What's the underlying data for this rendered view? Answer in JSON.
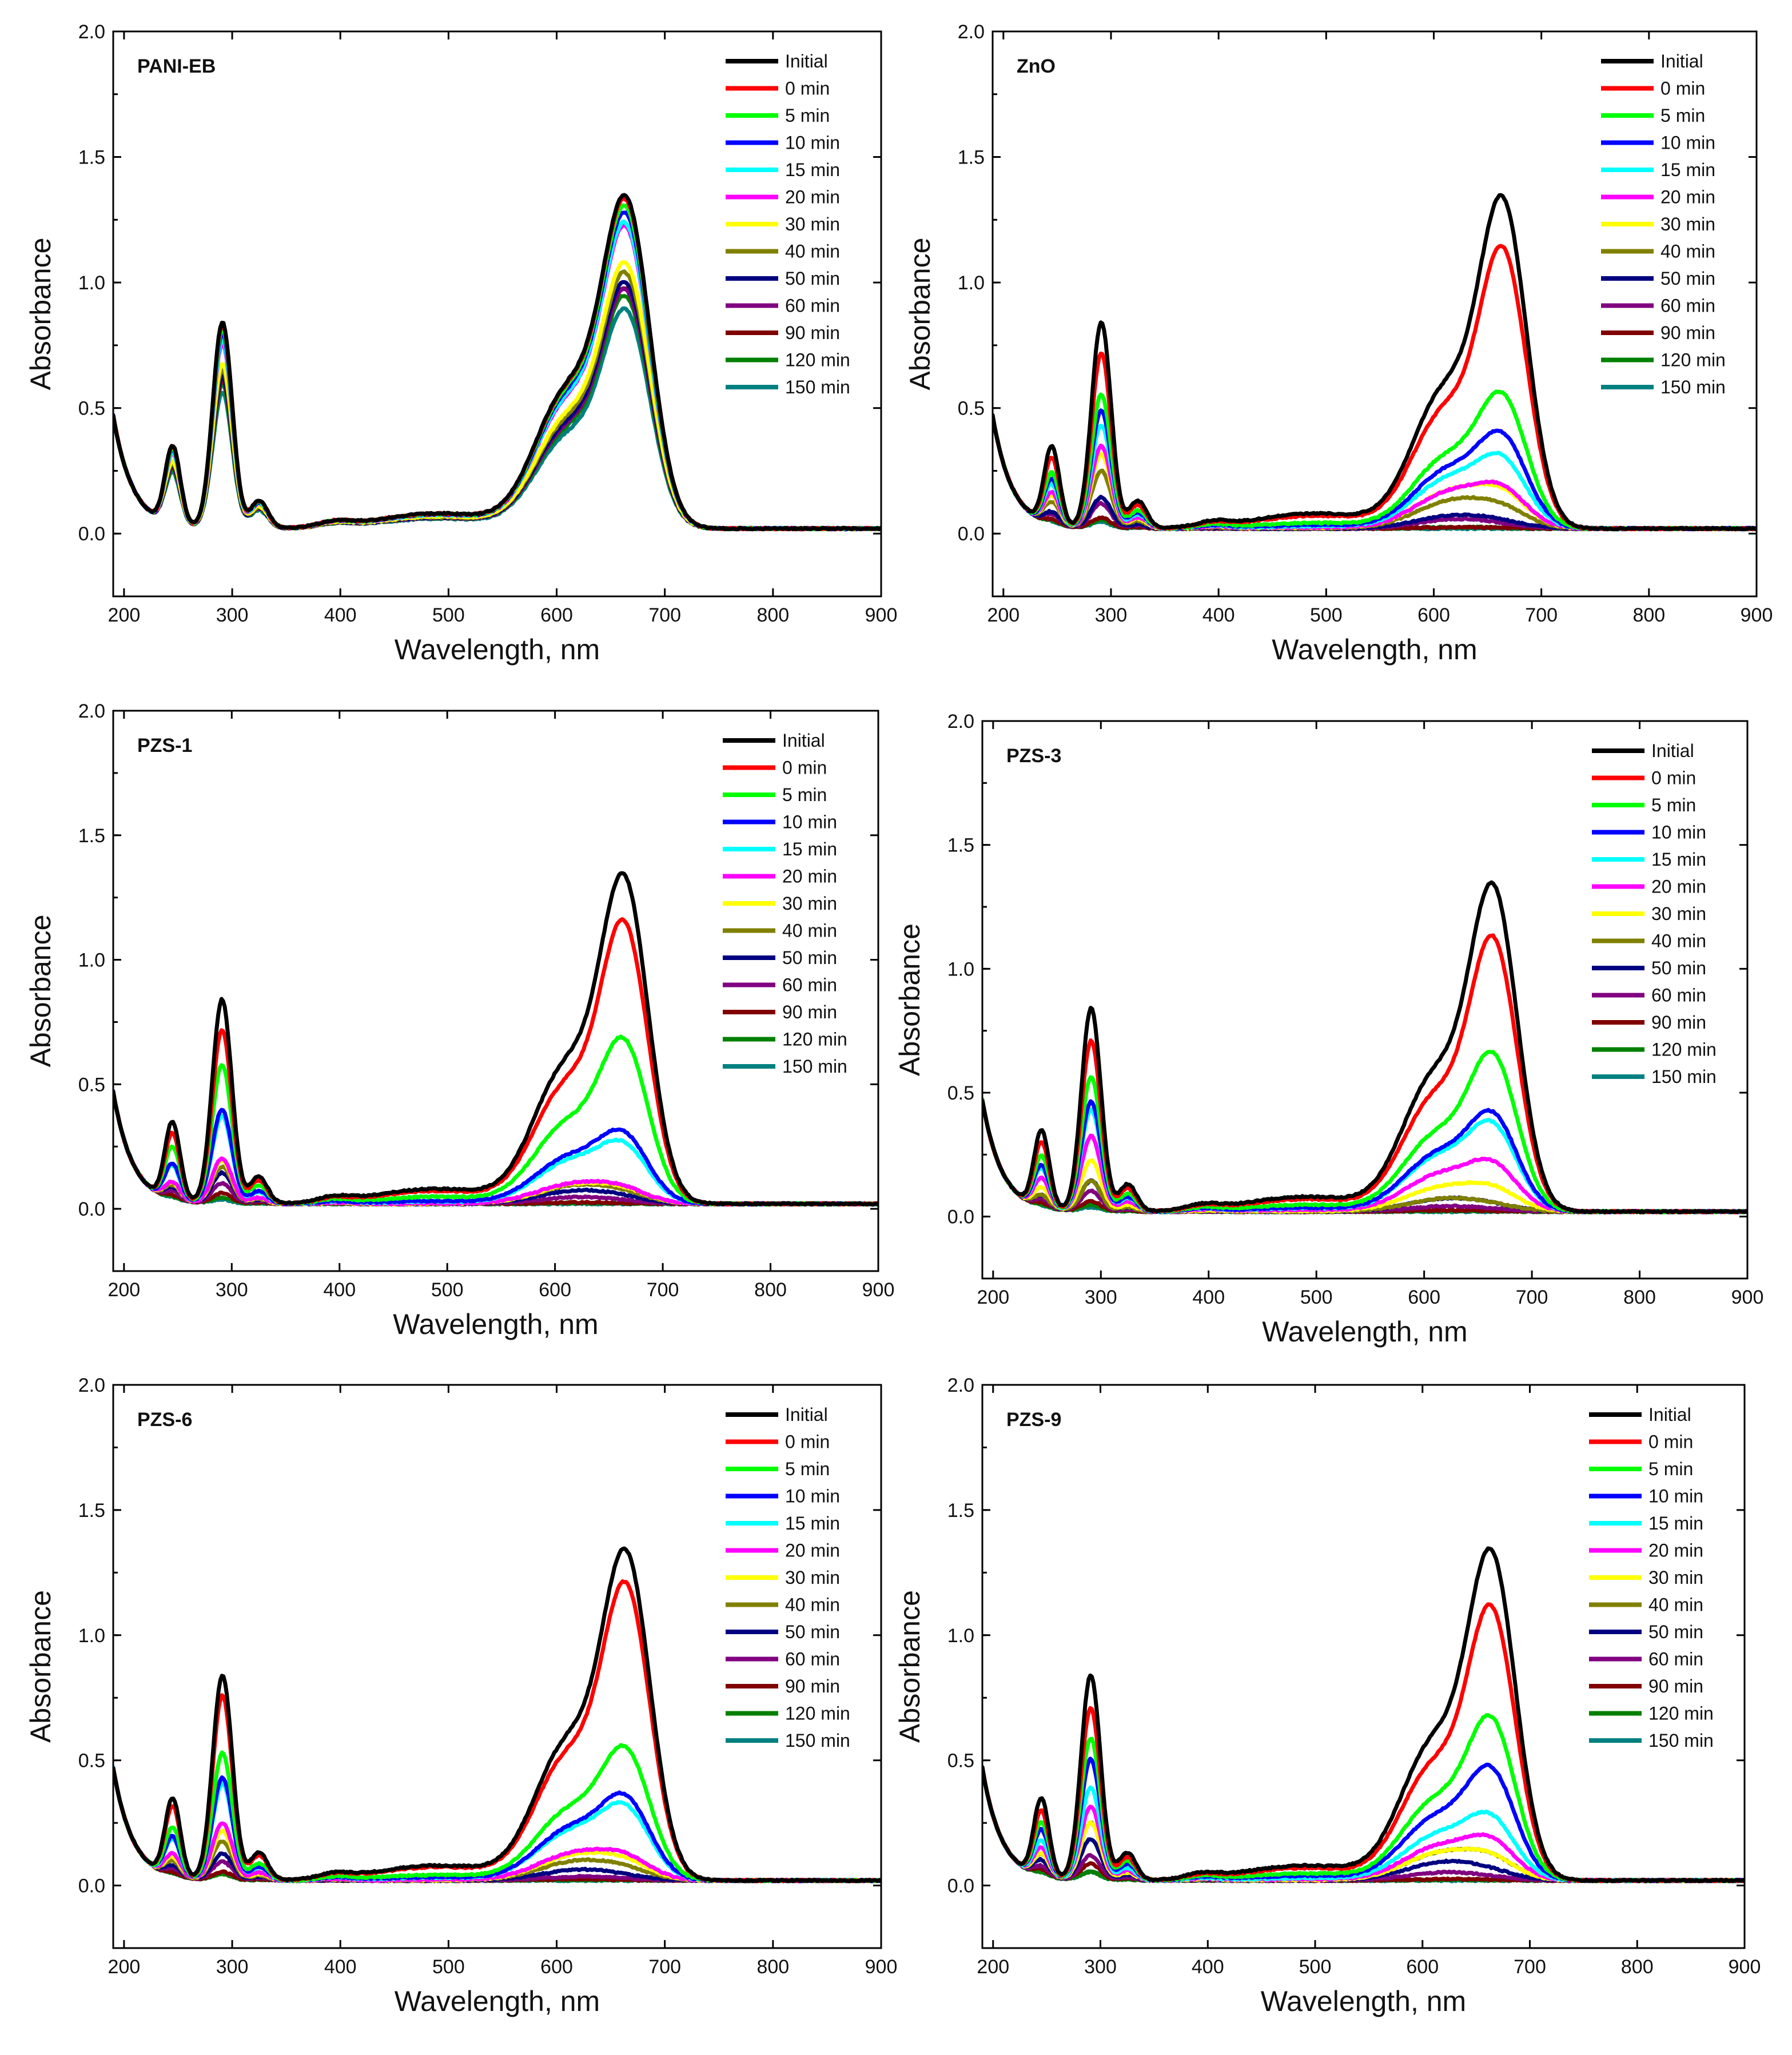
{
  "chart_data": [
    {
      "type": "line",
      "title": "PANI-EB",
      "xlabel": "Wavelength, nm",
      "ylabel": "Absorbance",
      "xlim": [
        190,
        900
      ],
      "ylim": [
        -0.25,
        2.0
      ],
      "xticks": [
        "200",
        "300",
        "400",
        "500",
        "600",
        "700",
        "800",
        "900"
      ],
      "yticks": [
        "0.0",
        "0.5",
        "1.0",
        "1.5",
        "2.0"
      ],
      "legend_position": "top-right",
      "series": [
        {
          "name": "Initial",
          "color": "#000000",
          "a": 1.0,
          "s1": 1.0,
          "s2": 1.0,
          "p": 0
        },
        {
          "name": "0 min",
          "color": "#ff0000",
          "a": 0.99,
          "s1": 0.99,
          "s2": 0.99,
          "p": 0
        },
        {
          "name": "5 min",
          "color": "#00ff00",
          "a": 0.97,
          "s1": 0.97,
          "s2": 0.97,
          "p": 0
        },
        {
          "name": "10 min",
          "color": "#0000ff",
          "a": 0.95,
          "s1": 0.95,
          "s2": 0.95,
          "p": 0
        },
        {
          "name": "15 min",
          "color": "#00ffff",
          "a": 0.92,
          "s1": 0.92,
          "s2": 0.92,
          "p": 0
        },
        {
          "name": "20 min",
          "color": "#ff00ff",
          "a": 0.9,
          "s1": 0.9,
          "s2": 0.91,
          "p": 0
        },
        {
          "name": "30 min",
          "color": "#ffff00",
          "a": 0.8,
          "s1": 0.8,
          "s2": 0.8,
          "p": 0
        },
        {
          "name": "40 min",
          "color": "#808000",
          "a": 0.77,
          "s1": 0.76,
          "s2": 0.77,
          "p": 0
        },
        {
          "name": "50 min",
          "color": "#000080",
          "a": 0.74,
          "s1": 0.72,
          "s2": 0.74,
          "p": 0
        },
        {
          "name": "60 min",
          "color": "#800080",
          "a": 0.73,
          "s1": 0.71,
          "s2": 0.72,
          "p": 0
        },
        {
          "name": "90 min",
          "color": "#800000",
          "a": 0.72,
          "s1": 0.7,
          "s2": 0.72,
          "p": 0
        },
        {
          "name": "120 min",
          "color": "#008000",
          "a": 0.7,
          "s1": 0.67,
          "s2": 0.7,
          "p": 0
        },
        {
          "name": "150 min",
          "color": "#008080",
          "a": 0.66,
          "s1": 0.64,
          "s2": 0.66,
          "p": 0
        }
      ]
    },
    {
      "type": "line",
      "title": "ZnO",
      "xlabel": "Wavelength, nm",
      "ylabel": "Absorbance",
      "xlim": [
        190,
        900
      ],
      "ylim": [
        -0.25,
        2.0
      ],
      "xticks": [
        "200",
        "300",
        "400",
        "500",
        "600",
        "700",
        "800",
        "900"
      ],
      "yticks": [
        "0.0",
        "0.5",
        "1.0",
        "1.5",
        "2.0"
      ],
      "legend_position": "top-right",
      "series": [
        {
          "name": "Initial",
          "color": "#000000",
          "a": 1.0,
          "s1": 1.0,
          "s2": 1.0,
          "p": 0
        },
        {
          "name": "0 min",
          "color": "#ff0000",
          "a": 0.85,
          "s1": 0.82,
          "s2": 0.85,
          "p": 0
        },
        {
          "name": "5 min",
          "color": "#00ff00",
          "a": 0.65,
          "s1": 0.55,
          "s2": 0.52,
          "p": 0.3
        },
        {
          "name": "10 min",
          "color": "#0000ff",
          "a": 0.57,
          "s1": 0.45,
          "s2": 0.43,
          "p": 0.45
        },
        {
          "name": "15 min",
          "color": "#00ffff",
          "a": 0.5,
          "s1": 0.4,
          "s2": 0.35,
          "p": 0.55
        },
        {
          "name": "20 min",
          "color": "#ff00ff",
          "a": 0.4,
          "s1": 0.3,
          "s2": 0.23,
          "p": 0.7
        },
        {
          "name": "30 min",
          "color": "#ffff00",
          "a": 0.36,
          "s1": 0.3,
          "s2": 0.23,
          "p": 0.75
        },
        {
          "name": "40 min",
          "color": "#808000",
          "a": 0.28,
          "s1": 0.22,
          "s2": 0.17,
          "p": 0.85
        },
        {
          "name": "50 min",
          "color": "#000080",
          "a": 0.15,
          "s1": 0.1,
          "s2": 0.07,
          "p": 0.95
        },
        {
          "name": "60 min",
          "color": "#800080",
          "a": 0.12,
          "s1": 0.07,
          "s2": 0.05,
          "p": 1.0
        },
        {
          "name": "90 min",
          "color": "#800000",
          "a": 0.05,
          "s1": 0.01,
          "s2": 0.005,
          "p": 1.0
        },
        {
          "name": "120 min",
          "color": "#008000",
          "a": 0.04,
          "s1": 0.01,
          "s2": 0.005,
          "p": 1.0
        },
        {
          "name": "150 min",
          "color": "#008080",
          "a": 0.03,
          "s1": 0.0,
          "s2": 0.0,
          "p": 1.0
        }
      ]
    },
    {
      "type": "line",
      "title": "PZS-1",
      "xlabel": "Wavelength, nm",
      "ylabel": "Absorbance",
      "xlim": [
        190,
        900
      ],
      "ylim": [
        -0.25,
        2.0
      ],
      "xticks": [
        "200",
        "300",
        "400",
        "500",
        "600",
        "700",
        "800",
        "900"
      ],
      "yticks": [
        "0.0",
        "0.5",
        "1.0",
        "1.5",
        "2.0"
      ],
      "legend_position": "top-right",
      "series": [
        {
          "name": "Initial",
          "color": "#000000",
          "a": 1.0,
          "s1": 1.0,
          "s2": 1.0,
          "p": 0
        },
        {
          "name": "0 min",
          "color": "#ff0000",
          "a": 0.85,
          "s1": 0.83,
          "s2": 0.86,
          "p": 0
        },
        {
          "name": "5 min",
          "color": "#00ff00",
          "a": 0.68,
          "s1": 0.6,
          "s2": 0.59,
          "p": 0.2
        },
        {
          "name": "10 min",
          "color": "#0000ff",
          "a": 0.46,
          "s1": 0.38,
          "s2": 0.33,
          "p": 0.5
        },
        {
          "name": "15 min",
          "color": "#00ffff",
          "a": 0.43,
          "s1": 0.35,
          "s2": 0.29,
          "p": 0.55
        },
        {
          "name": "20 min",
          "color": "#ff00ff",
          "a": 0.22,
          "s1": 0.16,
          "s2": 0.13,
          "p": 0.85
        },
        {
          "name": "30 min",
          "color": "#ffff00",
          "a": 0.21,
          "s1": 0.15,
          "s2": 0.12,
          "p": 0.85
        },
        {
          "name": "40 min",
          "color": "#808000",
          "a": 0.18,
          "s1": 0.14,
          "s2": 0.11,
          "p": 0.9
        },
        {
          "name": "50 min",
          "color": "#000080",
          "a": 0.15,
          "s1": 0.1,
          "s2": 0.07,
          "p": 0.95
        },
        {
          "name": "60 min",
          "color": "#800080",
          "a": 0.1,
          "s1": 0.05,
          "s2": 0.03,
          "p": 1.0
        },
        {
          "name": "90 min",
          "color": "#800000",
          "a": 0.05,
          "s1": 0.01,
          "s2": 0.005,
          "p": 1.0
        },
        {
          "name": "120 min",
          "color": "#008000",
          "a": 0.03,
          "s1": 0.005,
          "s2": 0.0,
          "p": 1.0
        },
        {
          "name": "150 min",
          "color": "#008080",
          "a": 0.02,
          "s1": 0.0,
          "s2": 0.0,
          "p": 1.0
        }
      ]
    },
    {
      "type": "line",
      "title": "PZS-3",
      "xlabel": "Wavelength, nm",
      "ylabel": "Absorbance",
      "xlim": [
        190,
        900
      ],
      "ylim": [
        -0.25,
        2.0
      ],
      "xticks": [
        "200",
        "300",
        "400",
        "500",
        "600",
        "700",
        "800",
        "900"
      ],
      "yticks": [
        "0.0",
        "0.5",
        "1.0",
        "1.5",
        "2.0"
      ],
      "legend_position": "top-right",
      "series": [
        {
          "name": "Initial",
          "color": "#000000",
          "a": 1.0,
          "s1": 1.0,
          "s2": 1.0,
          "p": 0
        },
        {
          "name": "0 min",
          "color": "#ff0000",
          "a": 0.84,
          "s1": 0.82,
          "s2": 0.84,
          "p": 0
        },
        {
          "name": "5 min",
          "color": "#00ff00",
          "a": 0.66,
          "s1": 0.58,
          "s2": 0.57,
          "p": 0.2
        },
        {
          "name": "10 min",
          "color": "#0000ff",
          "a": 0.54,
          "s1": 0.46,
          "s2": 0.42,
          "p": 0.4
        },
        {
          "name": "15 min",
          "color": "#00ffff",
          "a": 0.5,
          "s1": 0.43,
          "s2": 0.4,
          "p": 0.45
        },
        {
          "name": "20 min",
          "color": "#ff00ff",
          "a": 0.37,
          "s1": 0.3,
          "s2": 0.26,
          "p": 0.6
        },
        {
          "name": "30 min",
          "color": "#ffff00",
          "a": 0.25,
          "s1": 0.2,
          "s2": 0.15,
          "p": 0.75
        },
        {
          "name": "40 min",
          "color": "#808000",
          "a": 0.15,
          "s1": 0.1,
          "s2": 0.07,
          "p": 0.95
        },
        {
          "name": "50 min",
          "color": "#000080",
          "a": 0.15,
          "s1": 0.1,
          "s2": 0.07,
          "p": 0.95
        },
        {
          "name": "60 min",
          "color": "#800080",
          "a": 0.1,
          "s1": 0.04,
          "s2": 0.02,
          "p": 1.0
        },
        {
          "name": "90 min",
          "color": "#800000",
          "a": 0.05,
          "s1": 0.01,
          "s2": 0.005,
          "p": 1.0
        },
        {
          "name": "120 min",
          "color": "#008000",
          "a": 0.03,
          "s1": 0.005,
          "s2": 0.0,
          "p": 1.0
        },
        {
          "name": "150 min",
          "color": "#008080",
          "a": 0.02,
          "s1": 0.0,
          "s2": 0.0,
          "p": 1.0
        }
      ]
    },
    {
      "type": "line",
      "title": "PZS-6",
      "xlabel": "Wavelength, nm",
      "ylabel": "Absorbance",
      "xlim": [
        190,
        900
      ],
      "ylim": [
        -0.25,
        2.0
      ],
      "xticks": [
        "200",
        "300",
        "400",
        "500",
        "600",
        "700",
        "800",
        "900"
      ],
      "yticks": [
        "0.0",
        "0.5",
        "1.0",
        "1.5",
        "2.0"
      ],
      "legend_position": "top-right",
      "series": [
        {
          "name": "Initial",
          "color": "#000000",
          "a": 1.0,
          "s1": 1.0,
          "s2": 1.0,
          "p": 0
        },
        {
          "name": "0 min",
          "color": "#ff0000",
          "a": 0.9,
          "s1": 0.88,
          "s2": 0.9,
          "p": 0
        },
        {
          "name": "5 min",
          "color": "#00ff00",
          "a": 0.62,
          "s1": 0.55,
          "s2": 0.51,
          "p": 0.3
        },
        {
          "name": "10 min",
          "color": "#0000ff",
          "a": 0.5,
          "s1": 0.42,
          "s2": 0.37,
          "p": 0.45
        },
        {
          "name": "15 min",
          "color": "#00ffff",
          "a": 0.47,
          "s1": 0.4,
          "s2": 0.34,
          "p": 0.5
        },
        {
          "name": "20 min",
          "color": "#ff00ff",
          "a": 0.28,
          "s1": 0.22,
          "s2": 0.17,
          "p": 0.8
        },
        {
          "name": "30 min",
          "color": "#ffff00",
          "a": 0.24,
          "s1": 0.2,
          "s2": 0.15,
          "p": 0.85
        },
        {
          "name": "40 min",
          "color": "#808000",
          "a": 0.19,
          "s1": 0.15,
          "s2": 0.11,
          "p": 0.9
        },
        {
          "name": "50 min",
          "color": "#000080",
          "a": 0.13,
          "s1": 0.08,
          "s2": 0.06,
          "p": 1.0
        },
        {
          "name": "60 min",
          "color": "#800080",
          "a": 0.09,
          "s1": 0.03,
          "s2": 0.02,
          "p": 1.0
        },
        {
          "name": "90 min",
          "color": "#800000",
          "a": 0.04,
          "s1": 0.01,
          "s2": 0.005,
          "p": 1.0
        },
        {
          "name": "120 min",
          "color": "#008000",
          "a": 0.03,
          "s1": 0.005,
          "s2": 0.0,
          "p": 1.0
        },
        {
          "name": "150 min",
          "color": "#008080",
          "a": 0.03,
          "s1": 0.0,
          "s2": 0.0,
          "p": 1.0
        }
      ]
    },
    {
      "type": "line",
      "title": "PZS-9",
      "xlabel": "Wavelength, nm",
      "ylabel": "Absorbance",
      "xlim": [
        190,
        900
      ],
      "ylim": [
        -0.25,
        2.0
      ],
      "xticks": [
        "200",
        "300",
        "400",
        "500",
        "600",
        "700",
        "800",
        "900"
      ],
      "yticks": [
        "0.0",
        "0.5",
        "1.0",
        "1.5",
        "2.0"
      ],
      "legend_position": "top-right",
      "series": [
        {
          "name": "Initial",
          "color": "#000000",
          "a": 1.0,
          "s1": 1.0,
          "s2": 1.0,
          "p": 0
        },
        {
          "name": "0 min",
          "color": "#ff0000",
          "a": 0.84,
          "s1": 0.82,
          "s2": 0.83,
          "p": 0
        },
        {
          "name": "5 min",
          "color": "#00ff00",
          "a": 0.69,
          "s1": 0.6,
          "s2": 0.58,
          "p": 0.2
        },
        {
          "name": "10 min",
          "color": "#0000ff",
          "a": 0.59,
          "s1": 0.5,
          "s2": 0.45,
          "p": 0.35
        },
        {
          "name": "15 min",
          "color": "#00ffff",
          "a": 0.45,
          "s1": 0.38,
          "s2": 0.3,
          "p": 0.55
        },
        {
          "name": "20 min",
          "color": "#ff00ff",
          "a": 0.36,
          "s1": 0.28,
          "s2": 0.22,
          "p": 0.65
        },
        {
          "name": "30 min",
          "color": "#ffff00",
          "a": 0.28,
          "s1": 0.22,
          "s2": 0.17,
          "p": 0.8
        },
        {
          "name": "40 min",
          "color": "#808000",
          "a": 0.28,
          "s1": 0.22,
          "s2": 0.17,
          "p": 0.8
        },
        {
          "name": "50 min",
          "color": "#000080",
          "a": 0.2,
          "s1": 0.14,
          "s2": 0.1,
          "p": 0.95
        },
        {
          "name": "60 min",
          "color": "#800080",
          "a": 0.12,
          "s1": 0.06,
          "s2": 0.04,
          "p": 1.0
        },
        {
          "name": "90 min",
          "color": "#800000",
          "a": 0.08,
          "s1": 0.01,
          "s2": 0.005,
          "p": 1.0
        },
        {
          "name": "120 min",
          "color": "#008000",
          "a": 0.04,
          "s1": 0.005,
          "s2": 0.0,
          "p": 1.0
        },
        {
          "name": "150 min",
          "color": "#008080",
          "a": 0.04,
          "s1": 0.0,
          "s2": 0.0,
          "p": 1.0
        }
      ]
    }
  ]
}
